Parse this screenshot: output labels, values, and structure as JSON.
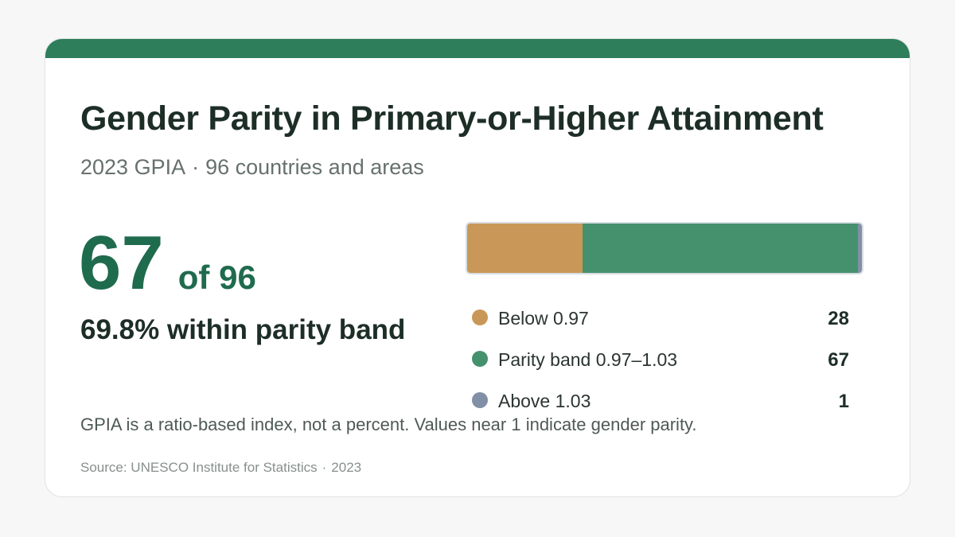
{
  "header": {
    "title": "Gender Parity in Primary-or-Higher Attainment",
    "subtitle_year": "2023 GPIA",
    "subtitle_sep": "·",
    "subtitle_scope": "96 countries and areas"
  },
  "headline": {
    "number": "67",
    "of_total": "of 96",
    "percent_line": "69.8% within parity band"
  },
  "chart_data": {
    "type": "bar",
    "orientation": "horizontal-stacked",
    "categories": [
      "Below 0.97",
      "Parity band 0.97–1.03",
      "Above 1.03"
    ],
    "values": [
      28,
      67,
      1
    ],
    "colors": [
      "#c99858",
      "#45916d",
      "#8190a6"
    ],
    "total": 96,
    "legend_placement": "below-right"
  },
  "note": "GPIA is a ratio-based index, not a percent. Values near 1 indicate gender parity.",
  "footer": {
    "source": "Source: UNESCO Institute for Statistics",
    "sep": "·",
    "year": "2023"
  },
  "colors": {
    "accent": "#2e7d5b",
    "headline": "#1f6b4d"
  }
}
